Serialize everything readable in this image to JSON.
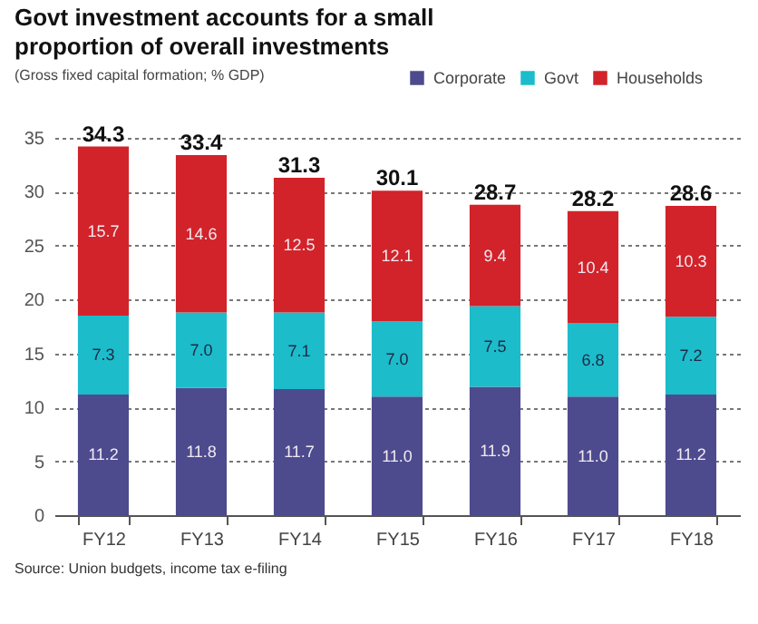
{
  "chart_data": {
    "type": "bar",
    "title": "Govt investment accounts for a small proportion of overall investments",
    "subtitle": "(Gross fixed capital formation; % GDP)",
    "categories": [
      "FY12",
      "FY13",
      "FY14",
      "FY15",
      "FY16",
      "FY17",
      "FY18"
    ],
    "series": [
      {
        "name": "Corporate",
        "color": "#4d4b8e",
        "values": [
          11.2,
          11.8,
          11.7,
          11.0,
          11.9,
          11.0,
          11.2
        ],
        "value_labels": [
          "11.2",
          "11.8",
          "11.7",
          "11.0",
          "11.9",
          "11.0",
          "11.2"
        ]
      },
      {
        "name": "Govt",
        "color": "#1cbccb",
        "values": [
          7.3,
          7.0,
          7.1,
          7.0,
          7.5,
          6.8,
          7.2
        ],
        "value_labels": [
          "7.3",
          "7.0",
          "7.1",
          "7.0",
          "7.5",
          "6.8",
          "7.2"
        ]
      },
      {
        "name": "Households",
        "color": "#d2232a",
        "values": [
          15.7,
          14.6,
          12.5,
          12.1,
          9.4,
          10.4,
          10.3
        ],
        "value_labels": [
          "15.7",
          "14.6",
          "12.5",
          "12.1",
          "9.4",
          "10.4",
          "10.3"
        ]
      }
    ],
    "stacked": true,
    "ylim": [
      0,
      35
    ],
    "yticks": [
      0,
      5,
      10,
      15,
      20,
      25,
      30,
      35
    ],
    "grid": "y",
    "legend": "top right",
    "totals": [
      "34.3",
      "33.4",
      "31.3",
      "30.1",
      "28.7",
      "28.2",
      "28.6"
    ],
    "annotations": [
      "Source: Union budgets, income tax e-filing"
    ]
  }
}
